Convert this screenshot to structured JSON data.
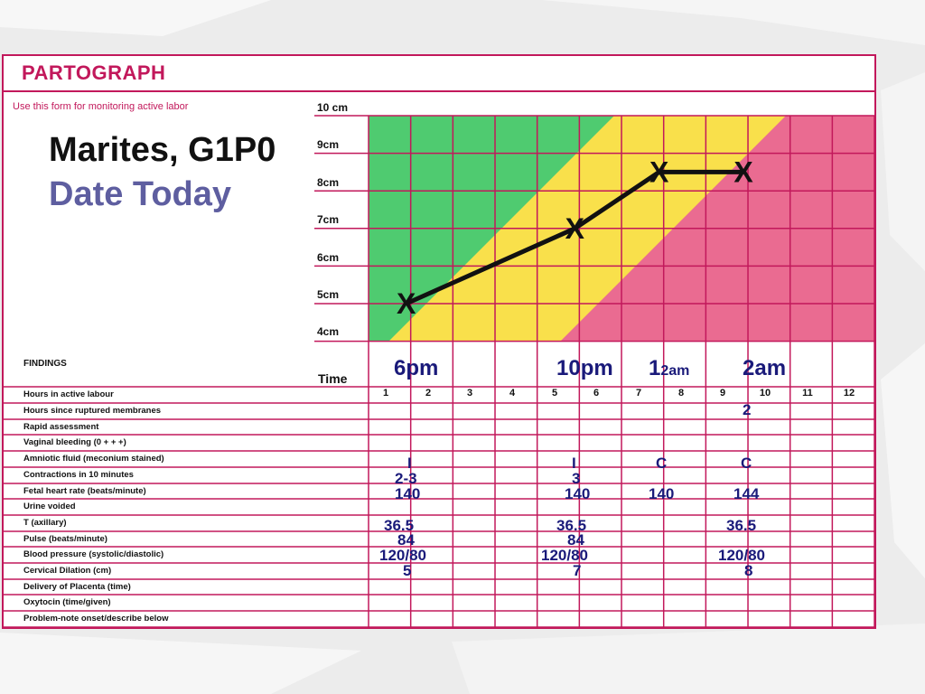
{
  "form": {
    "title": "PARTOGRAPH",
    "subtitle": "Use this form for monitoring active labor"
  },
  "patient": {
    "name": "Marites, G1P0",
    "date": "Date Today"
  },
  "dilation_axis": {
    "labels": [
      "10 cm",
      "9cm",
      "8cm",
      "7cm",
      "6cm",
      "5cm",
      "4cm"
    ]
  },
  "findings_label": "FINDINGS",
  "time_label": "Time",
  "time_marks": {
    "t1": "6pm",
    "t2": "10pm",
    "t3_main": "1",
    "t3_small": "2am",
    "t4": "2am"
  },
  "hours": [
    "1",
    "2",
    "3",
    "4",
    "5",
    "6",
    "7",
    "8",
    "9",
    "10",
    "11",
    "12"
  ],
  "rows": [
    "Hours in active labour",
    "Hours since ruptured membranes",
    "Rapid assessment",
    "Vaginal bleeding (0 + + +)",
    "Amniotic fluid (meconium stained)",
    "Contractions in 10 minutes",
    "Fetal heart rate (beats/minute)",
    "Urine voided",
    "T (axillary)",
    "Pulse (beats/minute)",
    "Blood pressure (systolic/diastolic)",
    "Cervical Dilation (cm)",
    "Delivery of Placenta (time)",
    "Oxytocin (time/given)",
    "Problem-note onset/describe below"
  ],
  "values": {
    "membranes_h10": "2",
    "amniotic_h2": "I",
    "amniotic_h6": "I",
    "amniotic_h8": "C",
    "amniotic_h10": "C",
    "contractions_h2": "2-3",
    "contractions_h6": "3",
    "fhr_h2": "140",
    "fhr_h6": "140",
    "fhr_h8": "140",
    "fhr_h10": "144",
    "temp_h2": "36.5",
    "temp_h6": "36.5",
    "temp_h10": "36.5",
    "pulse_h2": "84",
    "pulse_h6": "84",
    "bp_h2": "120/80",
    "bp_h6": "120/80",
    "bp_h10": "120/80",
    "dilation_h2": "5",
    "dilation_h6": "7",
    "dilation_h10": "8"
  },
  "plot": {
    "marker": "X",
    "points": [
      {
        "hour": 1,
        "cm": 5
      },
      {
        "hour": 5,
        "cm": 7
      },
      {
        "hour": 7,
        "cm": 8.5
      },
      {
        "hour": 9,
        "cm": 8.5
      }
    ]
  },
  "colors": {
    "frame": "#c2185b",
    "alert_zone": "#4fcb70",
    "action_zone": "#f9e04b",
    "danger_zone": "#ea6b91",
    "ink": "#1a1a7a"
  }
}
